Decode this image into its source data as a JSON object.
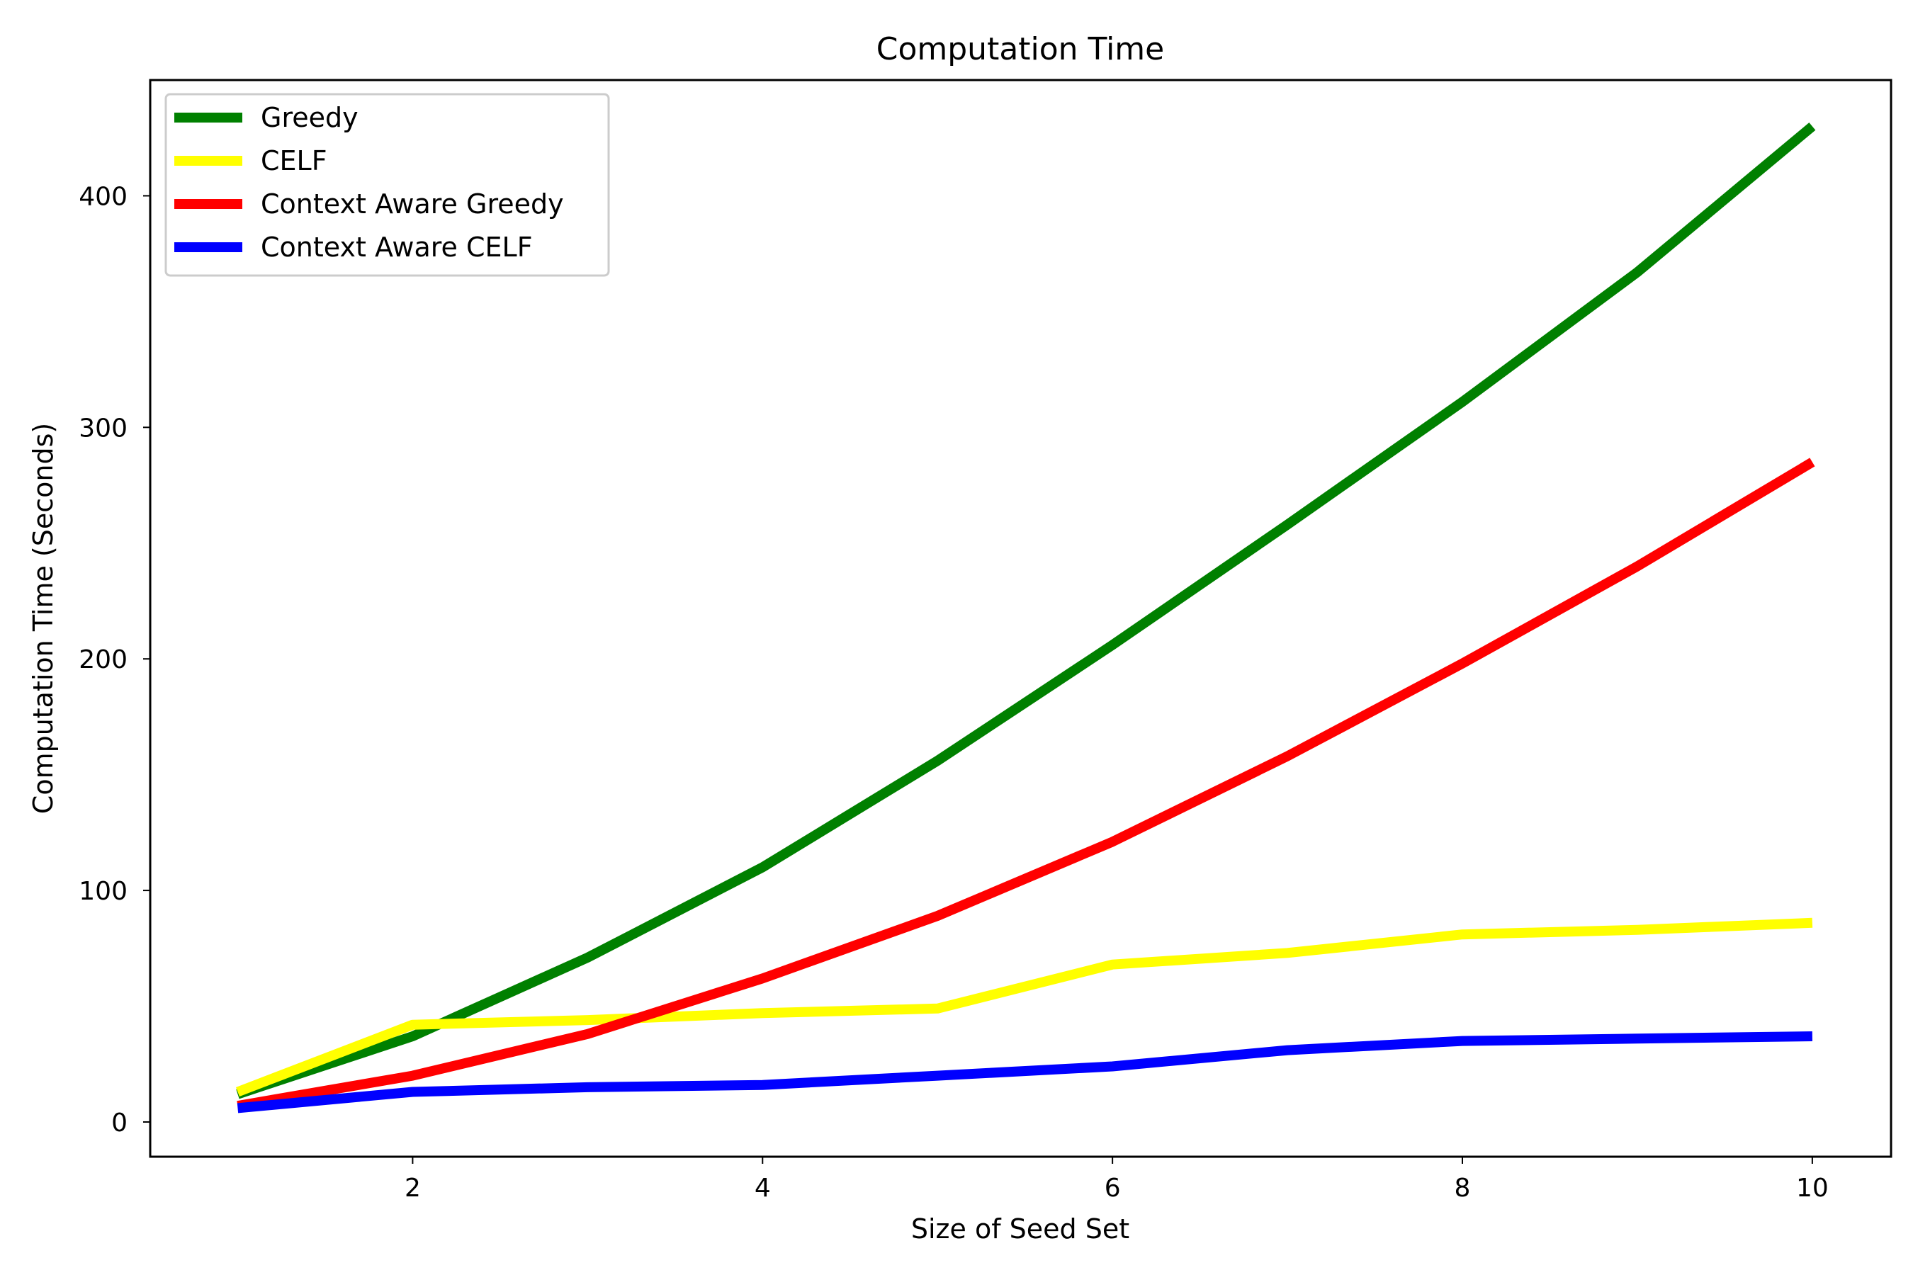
{
  "chart_data": {
    "type": "line",
    "title": "Computation Time",
    "xlabel": "Size of Seed Set",
    "ylabel": "Computation Time (Seconds)",
    "x": [
      1,
      2,
      3,
      4,
      5,
      6,
      7,
      8,
      9,
      10
    ],
    "xlim": [
      0.5,
      10.45
    ],
    "ylim": [
      -15,
      450
    ],
    "xticks": [
      2,
      4,
      6,
      8,
      10
    ],
    "yticks": [
      0,
      100,
      200,
      300,
      400
    ],
    "grid": false,
    "legend_position": "top-left",
    "series": [
      {
        "name": "Greedy",
        "color": "#008000",
        "values": [
          12,
          37,
          71,
          110,
          156,
          206,
          258,
          311,
          367,
          430
        ]
      },
      {
        "name": "CELF",
        "color": "#ffff00",
        "values": [
          13,
          42,
          44,
          47,
          49,
          68,
          73,
          81,
          83,
          86
        ]
      },
      {
        "name": "Context Aware Greedy",
        "color": "#ff0000",
        "values": [
          7,
          20,
          38,
          62,
          89,
          121,
          158,
          198,
          240,
          285
        ]
      },
      {
        "name": "Context Aware CELF",
        "color": "#0000ff",
        "values": [
          6,
          13,
          15,
          16,
          20,
          24,
          31,
          35,
          36,
          37
        ]
      }
    ]
  }
}
